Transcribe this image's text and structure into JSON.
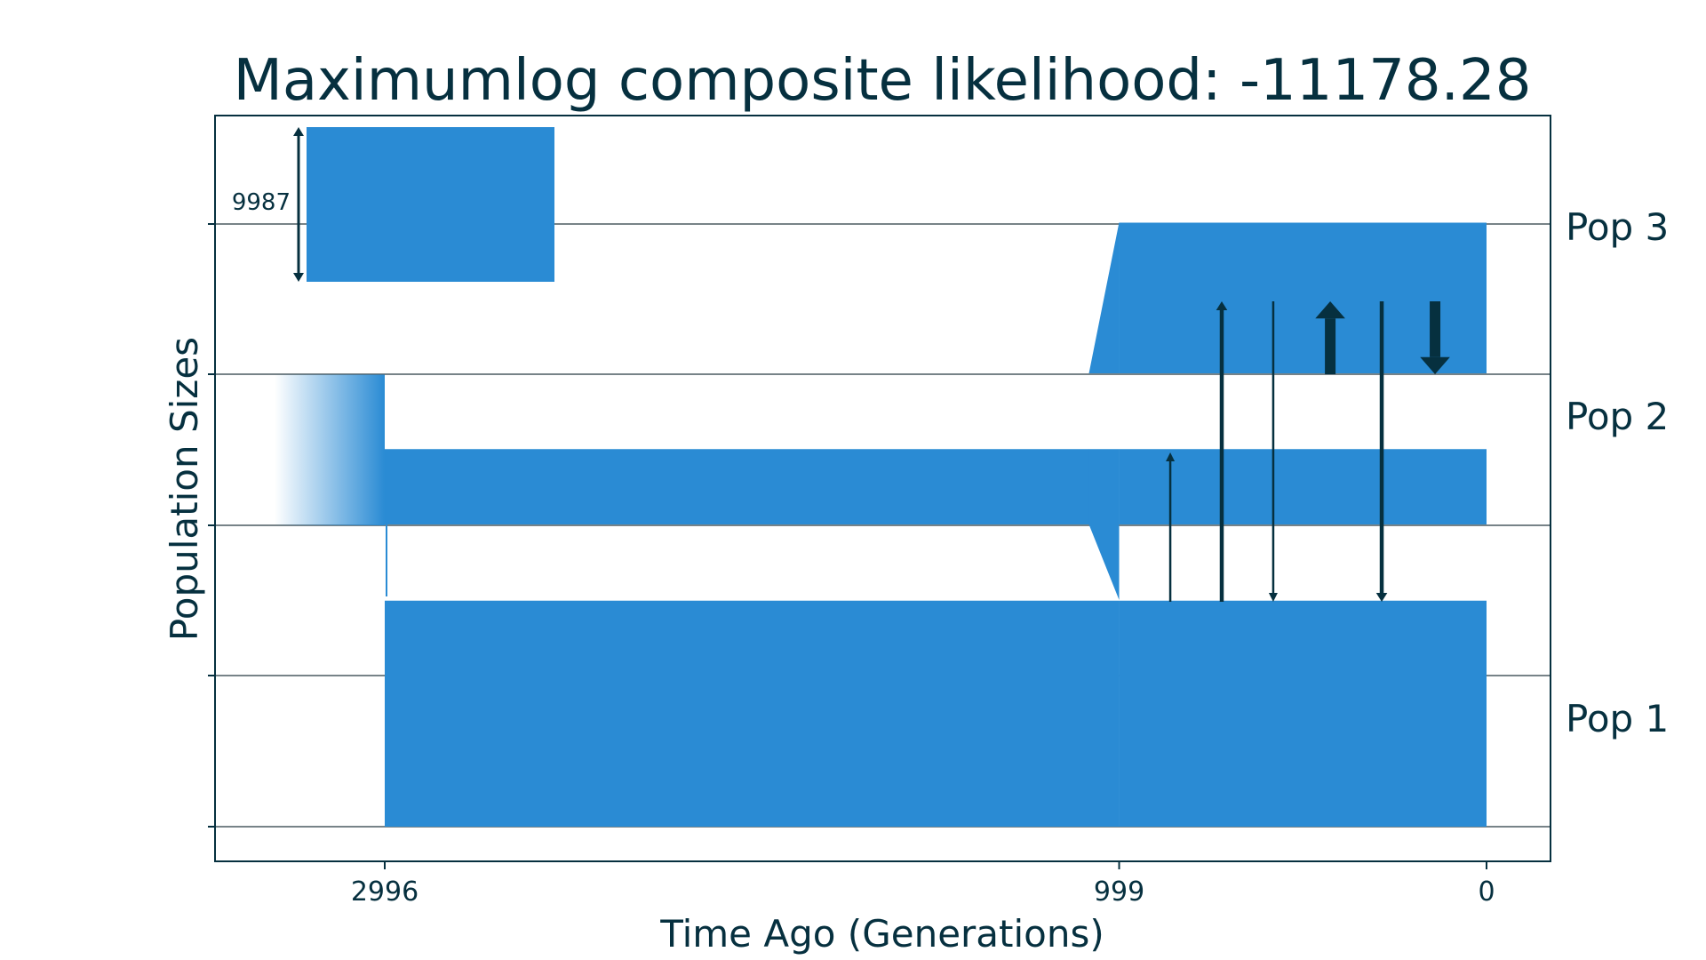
{
  "chart_data": {
    "type": "demographic-model",
    "title": "Maximumlog composite likelihood: -11178.28",
    "xlabel": "Time Ago (Generations)",
    "ylabel": "Population Sizes",
    "x_ticks": [
      {
        "value": 2996,
        "label": "2996"
      },
      {
        "value": 999,
        "label": "999"
      },
      {
        "value": 0,
        "label": "0"
      }
    ],
    "scale_bar": {
      "label": "9987",
      "size": 9987
    },
    "colors": {
      "population": "#2a8bd4",
      "arrow": "#06303f",
      "grid": "#4a5a60",
      "text": "#06303f"
    },
    "populations": [
      {
        "name": "Pop 1",
        "lane": 1,
        "epochs": [
          {
            "start": 2996,
            "end": 999,
            "size_start": 1.5,
            "size_end": 1.5
          },
          {
            "start": 999,
            "end": 0,
            "size_start": 1.5,
            "size_end": 1.5
          }
        ]
      },
      {
        "name": "Pop 2",
        "lane": 2,
        "epochs": [
          {
            "start": 2996,
            "end": 999,
            "size_start": 0.5,
            "size_end": 0.5
          },
          {
            "start": 999,
            "end": 0,
            "size_start": 0.5,
            "size_end": 0.5
          }
        ]
      },
      {
        "name": "Pop 3",
        "lane": 3,
        "epochs": [
          {
            "start": 999,
            "end": 0,
            "size_start": 1.0,
            "size_end": 1.0
          }
        ]
      }
    ],
    "ancestral_population": {
      "size": 1.0,
      "time": 2996
    },
    "migrations": [
      {
        "from": "Pop 1",
        "to": "Pop 2",
        "time": 860,
        "rate": 1
      },
      {
        "from": "Pop 1",
        "to": "Pop 3",
        "time": 720,
        "rate": 2
      },
      {
        "from": "Pop 3",
        "to": "Pop 1",
        "time": 580,
        "rate": 1
      },
      {
        "from": "Pop 2",
        "to": "Pop 3",
        "time": 425,
        "rate": 3
      },
      {
        "from": "Pop 3",
        "to": "Pop 1",
        "time": 285,
        "rate": 2
      },
      {
        "from": "Pop 3",
        "to": "Pop 2",
        "time": 140,
        "rate": 3
      }
    ]
  }
}
